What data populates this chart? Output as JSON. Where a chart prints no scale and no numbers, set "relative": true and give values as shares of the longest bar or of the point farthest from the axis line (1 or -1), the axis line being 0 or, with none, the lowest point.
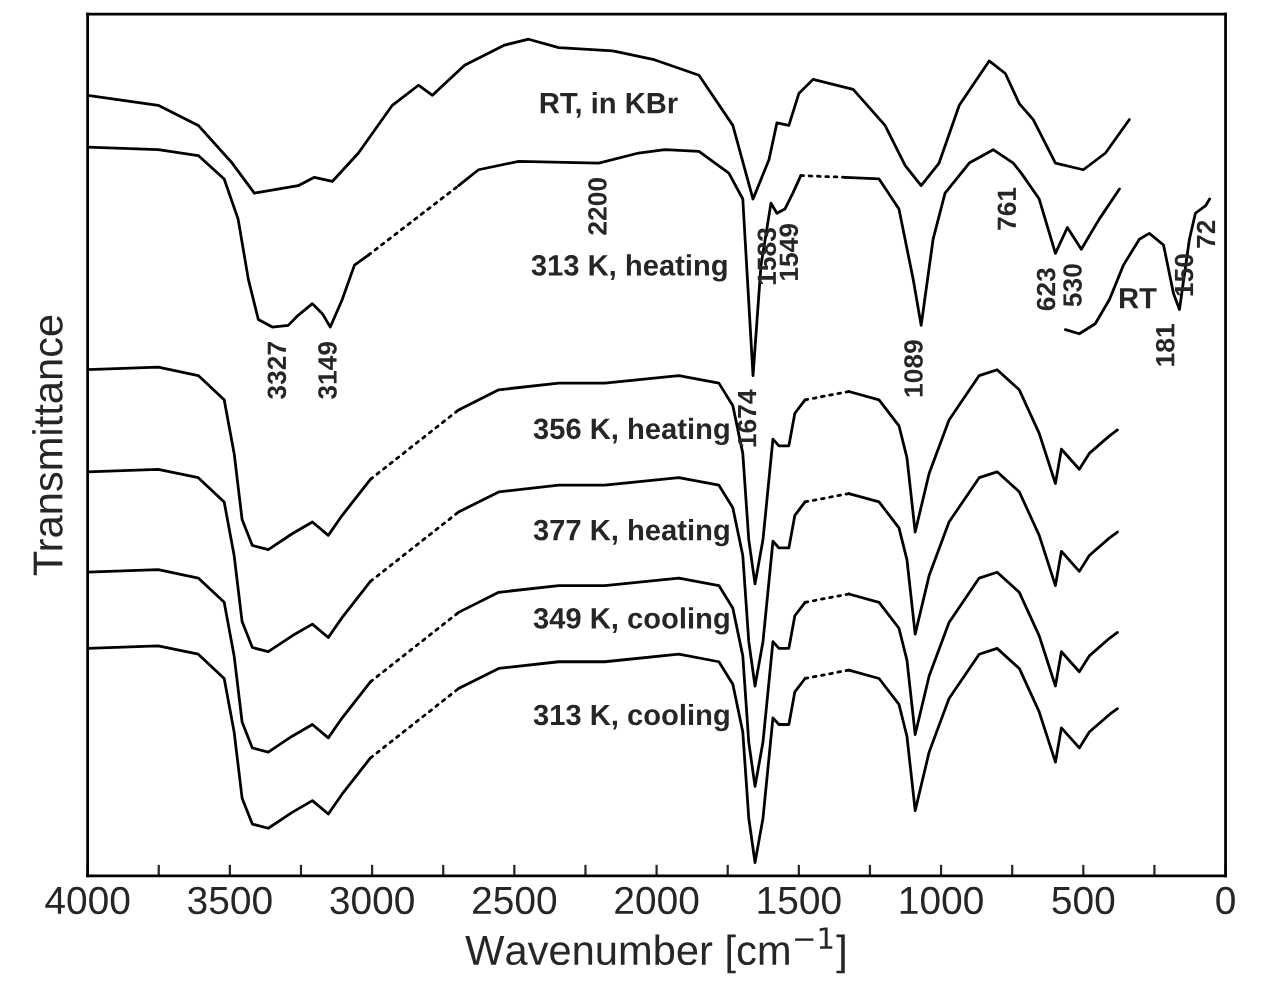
{
  "chart_data": {
    "type": "line",
    "relative": true,
    "xlabel": "Wavenumber [cm$^{−1}$]",
    "ylabel": "Transmittance",
    "xlim": [
      4000,
      0
    ],
    "xticks": [
      {
        "value": 4000,
        "label": "4000"
      },
      {
        "value": 3750,
        "label": null
      },
      {
        "value": 3500,
        "label": "3500"
      },
      {
        "value": 3250,
        "label": null
      },
      {
        "value": 3000,
        "label": "3000"
      },
      {
        "value": 2750,
        "label": null
      },
      {
        "value": 2500,
        "label": "2500"
      },
      {
        "value": 2250,
        "label": null
      },
      {
        "value": 2000,
        "label": "2000"
      },
      {
        "value": 1750,
        "label": null
      },
      {
        "value": 1500,
        "label": "1500"
      },
      {
        "value": 1250,
        "label": null
      },
      {
        "value": 1000,
        "label": "1000"
      },
      {
        "value": 750,
        "label": null
      },
      {
        "value": 500,
        "label": "500"
      },
      {
        "value": 250,
        "label": null
      },
      {
        "value": 0,
        "label": "0"
      }
    ],
    "tick_labels": "x",
    "series": [
      {
        "name": "RT, in KBr",
        "color": "#000000",
        "x": [
          4000,
          3752,
          3611,
          3492,
          3414,
          3260,
          3203,
          3140,
          3048,
          2929,
          2837,
          2788,
          2675,
          2534,
          2450,
          2344,
          2154,
          2013,
          1851,
          1732,
          1661,
          1605,
          1577,
          1535,
          1500,
          1450,
          1309,
          1197,
          1126,
          1070,
          1007,
          936,
          831,
          774,
          725,
          676,
          598,
          500,
          422,
          338
        ],
        "values": [
          0.933,
          0.921,
          0.897,
          0.852,
          0.816,
          0.825,
          0.835,
          0.83,
          0.864,
          0.921,
          0.945,
          0.933,
          0.969,
          0.993,
          1.0,
          0.99,
          0.986,
          0.976,
          0.957,
          0.897,
          0.809,
          0.856,
          0.9,
          0.897,
          0.935,
          0.952,
          0.94,
          0.897,
          0.849,
          0.825,
          0.852,
          0.921,
          0.974,
          0.959,
          0.923,
          0.904,
          0.852,
          0.844,
          0.864,
          0.904
        ]
      },
      {
        "color": "#000000",
        "x": [
          4000,
          3752,
          3611,
          3520,
          3471,
          3435,
          3400,
          3351,
          3295,
          3260,
          3210,
          3175,
          3147,
          3105,
          3062,
          3013
        ],
        "values": [
          0.871,
          0.868,
          0.861,
          0.833,
          0.785,
          0.713,
          0.665,
          0.656,
          0.658,
          0.67,
          0.684,
          0.672,
          0.656,
          0.689,
          0.73,
          0.742
        ]
      },
      {
        "color": "#000000",
        "line_style": "dotted",
        "x": [
          3013,
          2696
        ],
        "values": [
          0.742,
          0.825
        ]
      },
      {
        "name": "313 K, heating",
        "color": "#000000",
        "x": [
          2696,
          2626,
          2485,
          2203,
          2063,
          1971,
          1851,
          1746,
          1697,
          1661,
          1633,
          1598,
          1577,
          1549,
          1521,
          1493
        ],
        "values": [
          0.825,
          0.844,
          0.854,
          0.852,
          0.864,
          0.868,
          0.866,
          0.84,
          0.809,
          0.598,
          0.73,
          0.804,
          0.792,
          0.797,
          0.816,
          0.837
        ]
      },
      {
        "color": "#000000",
        "line_style": "dotted",
        "x": [
          1493,
          1338
        ],
        "values": [
          0.837,
          0.835
        ]
      },
      {
        "color": "#000000",
        "x": [
          1338,
          1218,
          1148,
          1098,
          1070,
          1028,
          986,
          901,
          817,
          746,
          718,
          655,
          598,
          556,
          507,
          444,
          373
        ],
        "values": [
          0.835,
          0.833,
          0.797,
          0.713,
          0.658,
          0.761,
          0.816,
          0.852,
          0.868,
          0.852,
          0.84,
          0.809,
          0.744,
          0.775,
          0.749,
          0.785,
          0.821
        ]
      },
      {
        "color": "#000000",
        "x": [
          4000,
          3752,
          3611,
          3520,
          3485,
          3457,
          3421,
          3365,
          3281,
          3210,
          3154,
          3105,
          3006
        ],
        "values": [
          0.605,
          0.608,
          0.598,
          0.569,
          0.505,
          0.426,
          0.395,
          0.39,
          0.409,
          0.423,
          0.407,
          0.431,
          0.474
        ]
      },
      {
        "color": "#000000",
        "line_style": "dotted",
        "x": [
          3006,
          2696
        ],
        "values": [
          0.474,
          0.557
        ]
      },
      {
        "name": "356 K, heating",
        "color": "#000000",
        "x": [
          2696,
          2555,
          2344,
          2182,
          1922,
          1781,
          1732,
          1697,
          1676,
          1654,
          1626,
          1591,
          1570,
          1535,
          1514,
          1478
        ],
        "values": [
          0.557,
          0.581,
          0.589,
          0.589,
          0.598,
          0.589,
          0.562,
          0.505,
          0.402,
          0.349,
          0.402,
          0.522,
          0.514,
          0.514,
          0.553,
          0.569
        ]
      },
      {
        "color": "#000000",
        "line_style": "dotted",
        "x": [
          1478,
          1324
        ],
        "values": [
          0.569,
          0.579
        ]
      },
      {
        "color": "#000000",
        "x": [
          1324,
          1218,
          1148,
          1120,
          1091,
          1042,
          972,
          866,
          803,
          725,
          655,
          598,
          577,
          514,
          479,
          408,
          380
        ],
        "values": [
          0.579,
          0.569,
          0.538,
          0.5,
          0.411,
          0.481,
          0.545,
          0.598,
          0.605,
          0.581,
          0.529,
          0.469,
          0.51,
          0.486,
          0.505,
          0.526,
          0.533
        ]
      },
      {
        "color": "#000000",
        "x": [
          4000,
          3752,
          3611,
          3520,
          3485,
          3457,
          3421,
          3365,
          3281,
          3210,
          3154,
          3105,
          3006
        ],
        "values": [
          0.483,
          0.486,
          0.476,
          0.447,
          0.383,
          0.304,
          0.273,
          0.268,
          0.287,
          0.301,
          0.285,
          0.309,
          0.352
        ]
      },
      {
        "color": "#000000",
        "line_style": "dotted",
        "x": [
          3006,
          2696
        ],
        "values": [
          0.352,
          0.435
        ]
      },
      {
        "name": "377 K, heating",
        "color": "#000000",
        "x": [
          2696,
          2555,
          2344,
          2182,
          1922,
          1781,
          1732,
          1697,
          1676,
          1654,
          1626,
          1591,
          1570,
          1535,
          1514,
          1478
        ],
        "values": [
          0.435,
          0.459,
          0.467,
          0.467,
          0.476,
          0.467,
          0.44,
          0.383,
          0.28,
          0.227,
          0.28,
          0.4,
          0.392,
          0.392,
          0.431,
          0.447
        ]
      },
      {
        "color": "#000000",
        "line_style": "dotted",
        "x": [
          1478,
          1324
        ],
        "values": [
          0.447,
          0.457
        ]
      },
      {
        "color": "#000000",
        "x": [
          1324,
          1218,
          1148,
          1120,
          1091,
          1042,
          972,
          866,
          803,
          725,
          655,
          598,
          577,
          514,
          479,
          408,
          380
        ],
        "values": [
          0.457,
          0.447,
          0.416,
          0.378,
          0.289,
          0.359,
          0.423,
          0.476,
          0.483,
          0.459,
          0.407,
          0.347,
          0.388,
          0.364,
          0.383,
          0.404,
          0.411
        ]
      },
      {
        "color": "#000000",
        "x": [
          4000,
          3752,
          3611,
          3520,
          3485,
          3457,
          3421,
          3365,
          3281,
          3210,
          3154,
          3105,
          3006
        ],
        "values": [
          0.363,
          0.366,
          0.356,
          0.327,
          0.263,
          0.184,
          0.153,
          0.148,
          0.167,
          0.181,
          0.165,
          0.189,
          0.232
        ]
      },
      {
        "color": "#000000",
        "line_style": "dotted",
        "x": [
          3006,
          2696
        ],
        "values": [
          0.232,
          0.315
        ]
      },
      {
        "name": "349 K, cooling",
        "color": "#000000",
        "x": [
          2696,
          2555,
          2344,
          2182,
          1922,
          1781,
          1732,
          1697,
          1676,
          1654,
          1626,
          1591,
          1570,
          1535,
          1514,
          1478
        ],
        "values": [
          0.315,
          0.339,
          0.347,
          0.347,
          0.356,
          0.347,
          0.32,
          0.263,
          0.16,
          0.107,
          0.16,
          0.28,
          0.272,
          0.272,
          0.311,
          0.327
        ]
      },
      {
        "color": "#000000",
        "line_style": "dotted",
        "x": [
          1478,
          1324
        ],
        "values": [
          0.327,
          0.337
        ]
      },
      {
        "color": "#000000",
        "x": [
          1324,
          1218,
          1148,
          1120,
          1091,
          1042,
          972,
          866,
          803,
          725,
          655,
          598,
          577,
          514,
          479,
          408,
          380
        ],
        "values": [
          0.337,
          0.327,
          0.296,
          0.258,
          0.169,
          0.239,
          0.303,
          0.356,
          0.363,
          0.339,
          0.287,
          0.227,
          0.268,
          0.244,
          0.263,
          0.284,
          0.291
        ]
      },
      {
        "color": "#000000",
        "x": [
          4000,
          3752,
          3611,
          3520,
          3485,
          3457,
          3421,
          3365,
          3281,
          3210,
          3154,
          3105,
          3006
        ],
        "values": [
          0.272,
          0.275,
          0.265,
          0.236,
          0.172,
          0.093,
          0.062,
          0.057,
          0.076,
          0.09,
          0.074,
          0.098,
          0.141
        ]
      },
      {
        "color": "#000000",
        "line_style": "dotted",
        "x": [
          3006,
          2696
        ],
        "values": [
          0.141,
          0.224
        ]
      },
      {
        "name": "313 K, cooling",
        "color": "#000000",
        "x": [
          2696,
          2555,
          2344,
          2182,
          1922,
          1781,
          1732,
          1697,
          1676,
          1654,
          1626,
          1591,
          1570,
          1535,
          1514,
          1478
        ],
        "values": [
          0.224,
          0.248,
          0.256,
          0.256,
          0.265,
          0.256,
          0.229,
          0.172,
          0.069,
          0.016,
          0.069,
          0.189,
          0.181,
          0.181,
          0.22,
          0.236
        ]
      },
      {
        "color": "#000000",
        "line_style": "dotted",
        "x": [
          1478,
          1324
        ],
        "values": [
          0.236,
          0.246
        ]
      },
      {
        "color": "#000000",
        "x": [
          1324,
          1218,
          1148,
          1120,
          1091,
          1042,
          972,
          866,
          803,
          725,
          655,
          598,
          577,
          514,
          479,
          408,
          380
        ],
        "values": [
          0.246,
          0.236,
          0.205,
          0.167,
          0.078,
          0.148,
          0.212,
          0.265,
          0.272,
          0.248,
          0.196,
          0.136,
          0.177,
          0.153,
          0.172,
          0.193,
          0.2
        ]
      },
      {
        "name": "RT",
        "color": "#000000",
        "x": [
          563,
          514,
          458,
          408,
          359,
          303,
          268,
          218,
          183,
          162,
          127,
          106,
          70,
          56
        ],
        "values": [
          0.653,
          0.648,
          0.66,
          0.689,
          0.73,
          0.761,
          0.768,
          0.754,
          0.696,
          0.677,
          0.761,
          0.792,
          0.801,
          0.809
        ]
      }
    ],
    "annotations": [
      {
        "text": "3327",
        "x": 3327,
        "y": 0.656
      },
      {
        "text": "3149",
        "x": 3149,
        "y": 0.656
      },
      {
        "text": "2200",
        "x": 2200,
        "y": 0.852
      },
      {
        "text": "1674",
        "x": 1674,
        "y": 0.598
      },
      {
        "text": "1583",
        "x": 1583,
        "y": 0.792
      },
      {
        "text": "1549",
        "x": 1549,
        "y": 0.797
      },
      {
        "text": "1089",
        "x": 1089,
        "y": 0.658
      },
      {
        "text": "761",
        "x": 761,
        "y": 0.84
      },
      {
        "text": "623",
        "x": 623,
        "y": 0.744
      },
      {
        "text": "530",
        "x": 530,
        "y": 0.749
      },
      {
        "text": "181",
        "x": 181,
        "y": 0.677
      },
      {
        "text": "150",
        "x": 150,
        "y": 0.761
      },
      {
        "text": "72",
        "x": 72,
        "y": 0.801
      }
    ]
  }
}
